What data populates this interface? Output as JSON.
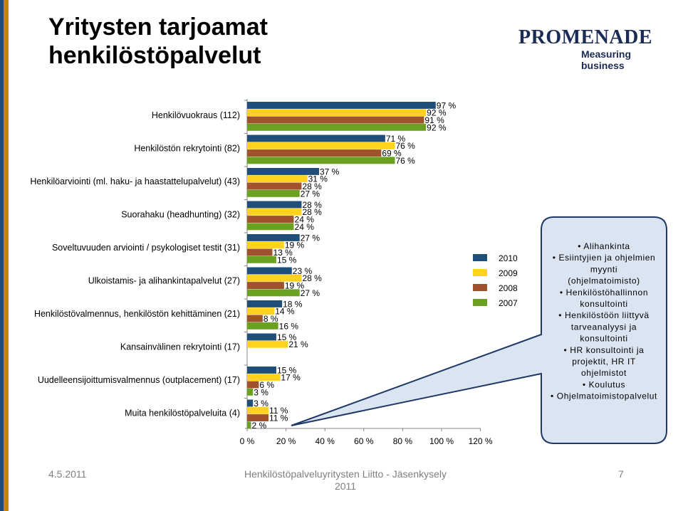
{
  "title_line1": "Yritysten tarjoamat",
  "title_line2": "henkilöstöpalvelut",
  "logo": {
    "main": "PROMENADE",
    "sub": "Measuring business"
  },
  "footer": {
    "date": "4.5.2011",
    "center_line1": "Henkilöstöpalveluyritysten Liitto - Jäsenkysely",
    "center_line2": "2011",
    "page": "7"
  },
  "chart_data": {
    "type": "bar",
    "orientation": "horizontal",
    "categories": [
      "Henkilövuokraus (112)",
      "Henkilöstön rekrytointi (82)",
      "Henkilöarviointi (ml. haku- ja haastattelupalvelut) (43)",
      "Suorahaku (headhunting) (32)",
      "Soveltuvuuden arviointi / psykologiset testit (31)",
      "Ulkoistamis- ja alihankintapalvelut (27)",
      "Henkilöstövalmennus, henkilöstön kehittäminen (21)",
      "Kansainvälinen rekrytointi (17)",
      "Uudelleensijoittumisvalmennus (outplacement) (17)",
      "Muita henkilöstöpalveluita (4)"
    ],
    "series": [
      {
        "name": "2010",
        "color": "#1f4e79",
        "values": [
          97,
          71,
          37,
          28,
          27,
          23,
          18,
          15,
          15,
          3
        ]
      },
      {
        "name": "2009",
        "color": "#ffd21f",
        "values": [
          92,
          76,
          31,
          28,
          19,
          28,
          14,
          21,
          17,
          11
        ]
      },
      {
        "name": "2008",
        "color": "#a0522d",
        "values": [
          91,
          69,
          28,
          24,
          13,
          19,
          8,
          null,
          6,
          11
        ]
      },
      {
        "name": "2007",
        "color": "#6aa121",
        "values": [
          92,
          76,
          27,
          24,
          15,
          27,
          16,
          null,
          3,
          2
        ]
      }
    ],
    "xticks": [
      "0 %",
      "20 %",
      "40 %",
      "60 %",
      "80 %",
      "100 %",
      "120 %"
    ],
    "xlim": [
      0,
      120
    ],
    "value_suffix": " %",
    "legend_position": "right",
    "callout": {
      "items": [
        "Alihankinta",
        "Esiintyjien ja ohjelmien myynti (ohjelmatoimisto)",
        "Henkilöstöhallinnon konsultointi",
        "Henkilöstöön liittyvä tarveanalyysi ja konsultointi",
        "HR konsultointi ja projektit, HR IT ohjelmistot",
        "Koulutus",
        "Ohjelmatoimistopalvelut"
      ],
      "bullet": "•"
    }
  }
}
